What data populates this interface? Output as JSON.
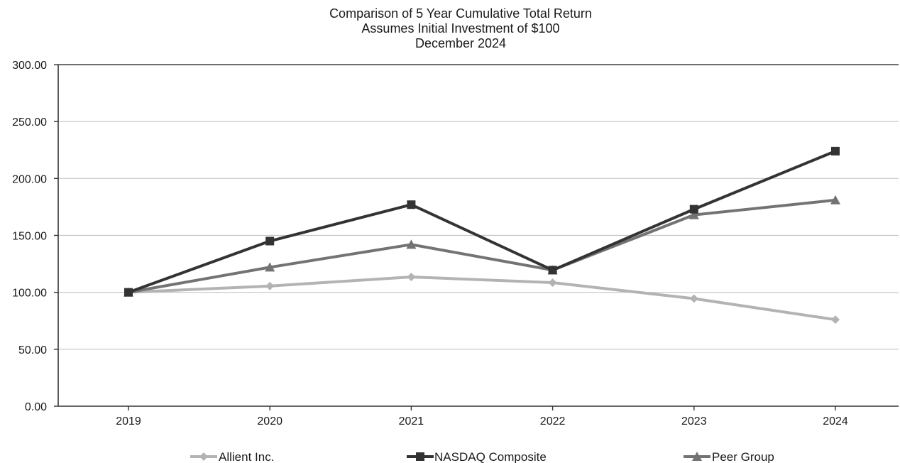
{
  "chart_data": {
    "type": "line",
    "title": "Comparison of 5 Year Cumulative Total Return",
    "subtitle": "Assumes Initial Investment of $100",
    "subtitle2": "December 2024",
    "xlabel": "",
    "ylabel": "",
    "categories": [
      "2019",
      "2020",
      "2021",
      "2022",
      "2023",
      "2024"
    ],
    "ylim": [
      0,
      300
    ],
    "yticks": [
      "0.00",
      "50.00",
      "100.00",
      "150.00",
      "200.00",
      "250.00",
      "300.00"
    ],
    "ytick_values": [
      0,
      50,
      100,
      150,
      200,
      250,
      300
    ],
    "grid": true,
    "legend_position": "bottom",
    "series": [
      {
        "name": "Allient Inc.",
        "values": [
          100,
          105.5,
          113.5,
          108.5,
          94.5,
          76
        ],
        "color": "#b3b3b3",
        "marker": "diamond"
      },
      {
        "name": "NASDAQ Composite",
        "values": [
          100,
          145,
          177,
          119.5,
          173,
          224
        ],
        "color": "#333333",
        "marker": "square"
      },
      {
        "name": "Peer Group",
        "values": [
          100,
          122,
          142,
          119.5,
          168,
          181
        ],
        "color": "#737373",
        "marker": "triangle"
      }
    ]
  }
}
